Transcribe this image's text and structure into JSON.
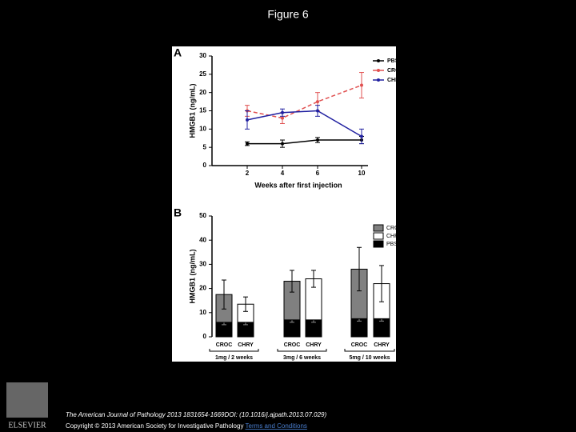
{
  "page": {
    "title": "Figure 6",
    "logo": "ELSEVIER",
    "citation": "The American Journal of Pathology 2013 1831654-1669DOI: (10.1016/j.ajpath.2013.07.029)",
    "copyright": "Copyright © 2013 American Society for Investigative Pathology",
    "terms": "Terms and Conditions"
  },
  "chart_data": [
    {
      "type": "line",
      "panel": "A",
      "x_label": "Weeks after first injection",
      "y_label": "HMGB1 (ng/mL)",
      "categories": [
        "2",
        "4",
        "6",
        "10"
      ],
      "series": [
        {
          "name": "PBS",
          "color": "#000000",
          "values": [
            6,
            6,
            7,
            7
          ],
          "errors": [
            0.5,
            1,
            0.7,
            1
          ]
        },
        {
          "name": "CROC",
          "color": "#e05050",
          "values": [
            15,
            13,
            17.5,
            22
          ],
          "errors": [
            1.5,
            1.5,
            2.5,
            3.5
          ]
        },
        {
          "name": "CHRY",
          "color": "#2020a0",
          "values": [
            12.5,
            14.5,
            15,
            8
          ],
          "errors": [
            2.5,
            1,
            1.5,
            2
          ]
        }
      ],
      "ylim": [
        0,
        30
      ],
      "yticks": [
        0,
        5,
        10,
        15,
        20,
        25,
        30
      ],
      "legend": "top-right"
    },
    {
      "type": "stacked-bar",
      "panel": "B",
      "y_label": "HMGB1 (ng/mL)",
      "categories": [
        "CROC",
        "CHRY",
        "CROC",
        "CHRY",
        "CROC",
        "CHRY"
      ],
      "groups": [
        "1mg / 2 weeks",
        "3mg / 6 weeks",
        "5mg / 10 weeks"
      ],
      "series": [
        {
          "name": "PBS",
          "color": "#000000",
          "values": [
            6,
            6,
            7,
            7,
            7.5,
            7.5
          ],
          "errors": [
            1,
            1,
            1,
            1,
            1,
            1
          ]
        },
        {
          "name": "CROC",
          "color": "#808080",
          "values": [
            11.5,
            null,
            16,
            null,
            20.5,
            null
          ],
          "errors": [
            6,
            null,
            4.5,
            null,
            9,
            null
          ]
        },
        {
          "name": "CHRY",
          "color": "#ffffff",
          "values": [
            null,
            7.5,
            null,
            17,
            null,
            14.5
          ],
          "errors": [
            null,
            3,
            null,
            3.5,
            null,
            7.5
          ]
        }
      ],
      "legend_order": [
        1,
        2,
        0
      ],
      "ylim": [
        0,
        50
      ],
      "yticks": [
        0,
        10,
        20,
        30,
        40,
        50
      ],
      "legend": "top-right"
    }
  ]
}
